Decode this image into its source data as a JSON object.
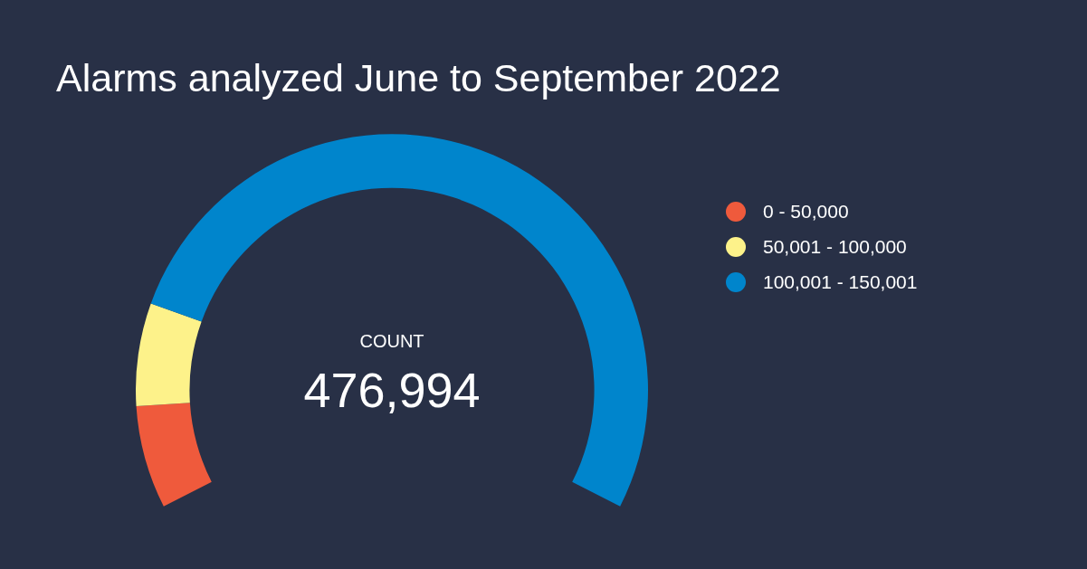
{
  "chart_data": {
    "type": "donut",
    "title": "Alarms analyzed June to September 2022",
    "categories": [
      "0 - 50,000",
      "50,001 - 100,000",
      "100,001 - 150,001"
    ],
    "values": [
      10,
      10,
      80
    ],
    "colors": [
      "#ef5a3c",
      "#fdf28a",
      "#0085cc"
    ],
    "legend": "right",
    "annotations": [
      "COUNT",
      "476,994"
    ]
  }
}
